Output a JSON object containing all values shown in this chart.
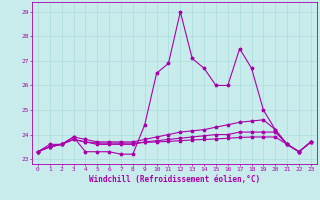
{
  "xlabel": "Windchill (Refroidissement éolien,°C)",
  "bg_color": "#c8ecec",
  "grid_color": "#aadddd",
  "line_color": "#aa00aa",
  "ylim": [
    22.8,
    29.4
  ],
  "xlim": [
    -0.5,
    23.5
  ],
  "yticks": [
    23,
    24,
    25,
    26,
    27,
    28,
    29
  ],
  "xticks": [
    0,
    1,
    2,
    3,
    4,
    5,
    6,
    7,
    8,
    9,
    10,
    11,
    12,
    13,
    14,
    15,
    16,
    17,
    18,
    19,
    20,
    21,
    22,
    23
  ],
  "series": [
    [
      23.3,
      23.6,
      23.6,
      23.9,
      23.3,
      23.3,
      23.3,
      23.2,
      23.2,
      24.4,
      26.5,
      26.9,
      29.0,
      27.1,
      26.7,
      26.0,
      26.0,
      27.5,
      26.7,
      25.0,
      24.2,
      23.6,
      23.3,
      23.7
    ],
    [
      23.3,
      23.5,
      23.6,
      23.9,
      23.8,
      23.7,
      23.7,
      23.7,
      23.7,
      23.8,
      23.9,
      24.0,
      24.1,
      24.15,
      24.2,
      24.3,
      24.4,
      24.5,
      24.55,
      24.6,
      24.2,
      23.6,
      23.3,
      23.7
    ],
    [
      23.3,
      23.5,
      23.6,
      23.8,
      23.7,
      23.6,
      23.6,
      23.6,
      23.6,
      23.7,
      23.75,
      23.8,
      23.85,
      23.9,
      23.95,
      24.0,
      24.0,
      24.1,
      24.1,
      24.1,
      24.1,
      23.6,
      23.3,
      23.7
    ],
    [
      23.3,
      23.5,
      23.6,
      23.8,
      23.7,
      23.65,
      23.65,
      23.65,
      23.65,
      23.68,
      23.7,
      23.72,
      23.75,
      23.78,
      23.8,
      23.82,
      23.85,
      23.88,
      23.9,
      23.9,
      23.9,
      23.6,
      23.3,
      23.7
    ]
  ],
  "xlabel_fontsize": 5.5,
  "tick_fontsize": 4.5,
  "linewidth": 0.8,
  "markersize": 2.5
}
